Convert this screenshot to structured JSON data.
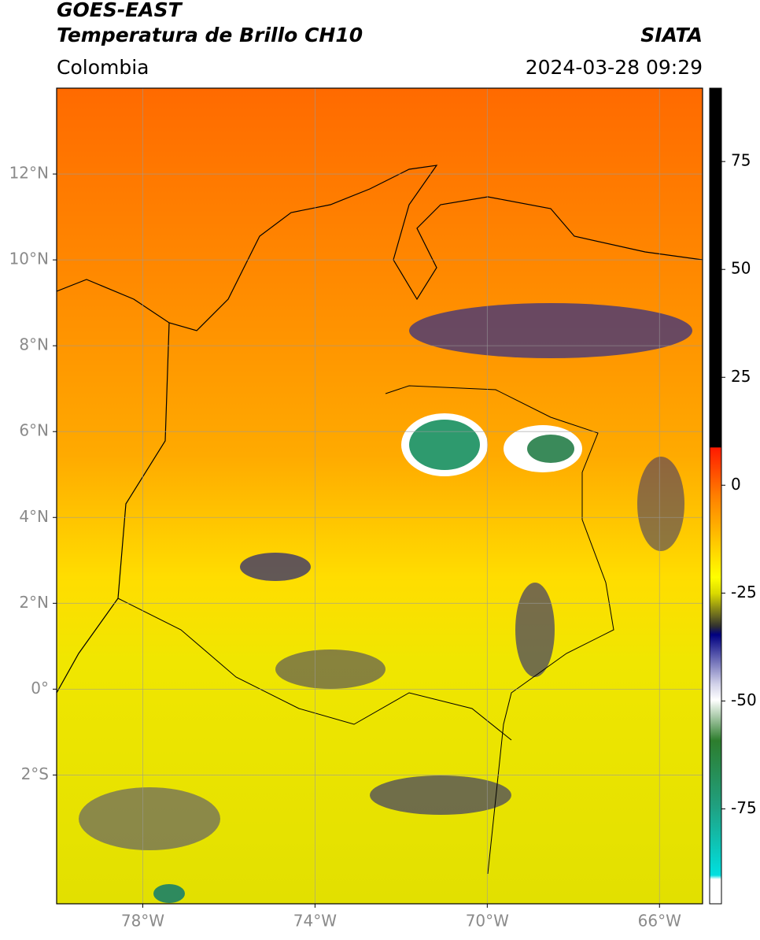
{
  "header": {
    "title": "GOES-EAST",
    "subtitle": "Temperatura de Brillo CH10",
    "agency": "SIATA",
    "region": "Colombia",
    "timestamp": "2024-03-28 09:29"
  },
  "map": {
    "xlim": [
      -80,
      -65
    ],
    "ylim": [
      -5,
      14
    ],
    "grid": true,
    "xticks": [
      {
        "value": -78,
        "label": "78°W"
      },
      {
        "value": -74,
        "label": "74°W"
      },
      {
        "value": -70,
        "label": "70°W"
      },
      {
        "value": -66,
        "label": "66°W"
      }
    ],
    "yticks": [
      {
        "value": 12,
        "label": "12°N"
      },
      {
        "value": 10,
        "label": "10°N"
      },
      {
        "value": 8,
        "label": "8°N"
      },
      {
        "value": 6,
        "label": "6°N"
      },
      {
        "value": 4,
        "label": "4°N"
      },
      {
        "value": 2,
        "label": "2°N"
      },
      {
        "value": 0,
        "label": "0°"
      },
      {
        "value": -2,
        "label": "2°S"
      }
    ]
  },
  "colorbar": {
    "lim": [
      -97,
      92
    ],
    "ticks": [
      75,
      50,
      25,
      0,
      -25,
      -50,
      -75
    ]
  }
}
